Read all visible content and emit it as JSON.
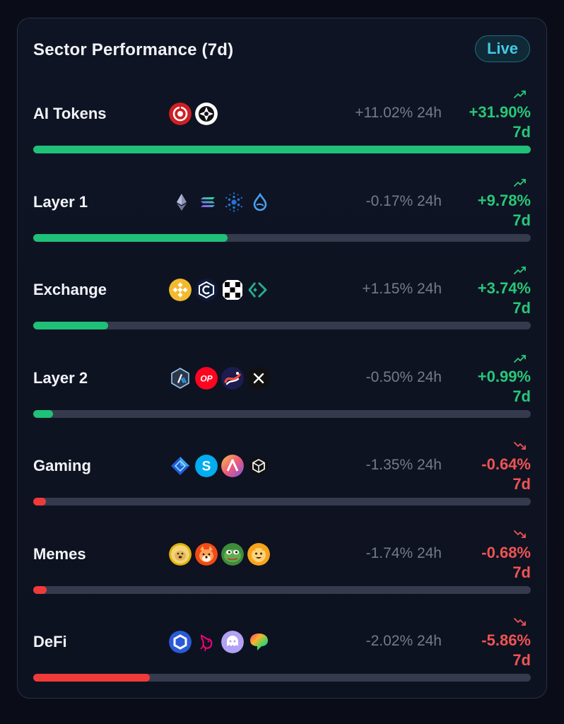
{
  "card": {
    "title": "Sector Performance (7d)",
    "live_label": "Live"
  },
  "colors": {
    "positive": "#27c878",
    "negative": "#ef5454",
    "track": "#353b4c",
    "live_accent": "#45c8e6"
  },
  "sectors": [
    {
      "name": "AI Tokens",
      "change_24h": "+11.02% 24h",
      "change_7d": "+31.90%",
      "unit_7d": "7d",
      "trend": "up",
      "trend_icon": "trend-up-icon",
      "bar_fraction": 1.0,
      "icons": [
        "render-coin-icon",
        "bittensor-coin-icon"
      ]
    },
    {
      "name": "Layer 1",
      "change_24h": "-0.17% 24h",
      "change_7d": "+9.78%",
      "unit_7d": "7d",
      "trend": "up",
      "trend_icon": "trend-up-icon",
      "bar_fraction": 0.39,
      "icons": [
        "ethereum-coin-icon",
        "solana-coin-icon",
        "cardano-coin-icon",
        "sui-coin-icon"
      ]
    },
    {
      "name": "Exchange",
      "change_24h": "+1.15% 24h",
      "change_7d": "+3.74%",
      "unit_7d": "7d",
      "trend": "up",
      "trend_icon": "trend-up-icon",
      "bar_fraction": 0.15,
      "icons": [
        "bnb-coin-icon",
        "cronos-coin-icon",
        "okb-coin-icon",
        "kucoin-coin-icon"
      ]
    },
    {
      "name": "Layer 2",
      "change_24h": "-0.50% 24h",
      "change_7d": "+0.99%",
      "unit_7d": "7d",
      "trend": "up",
      "trend_icon": "trend-up-icon",
      "bar_fraction": 0.04,
      "icons": [
        "arbitrum-coin-icon",
        "optimism-coin-icon",
        "starknet-coin-icon",
        "immutable-coin-icon"
      ]
    },
    {
      "name": "Gaming",
      "change_24h": "-1.35% 24h",
      "change_7d": "-0.64%",
      "unit_7d": "7d",
      "trend": "down",
      "trend_icon": "trend-down-icon",
      "bar_fraction": 0.025,
      "icons": [
        "gala-coin-icon",
        "sandbox-coin-icon",
        "axie-coin-icon",
        "enjin-coin-icon"
      ]
    },
    {
      "name": "Memes",
      "change_24h": "-1.74% 24h",
      "change_7d": "-0.68%",
      "unit_7d": "7d",
      "trend": "down",
      "trend_icon": "trend-down-icon",
      "bar_fraction": 0.027,
      "icons": [
        "dogecoin-coin-icon",
        "shiba-inu-coin-icon",
        "pepe-coin-icon",
        "bonk-coin-icon"
      ]
    },
    {
      "name": "DeFi",
      "change_24h": "-2.02% 24h",
      "change_7d": "-5.86%",
      "unit_7d": "7d",
      "trend": "down",
      "trend_icon": "trend-down-icon",
      "bar_fraction": 0.235,
      "icons": [
        "chainlink-coin-icon",
        "uniswap-coin-icon",
        "lido-coin-icon",
        "ethena-coin-icon"
      ]
    }
  ]
}
